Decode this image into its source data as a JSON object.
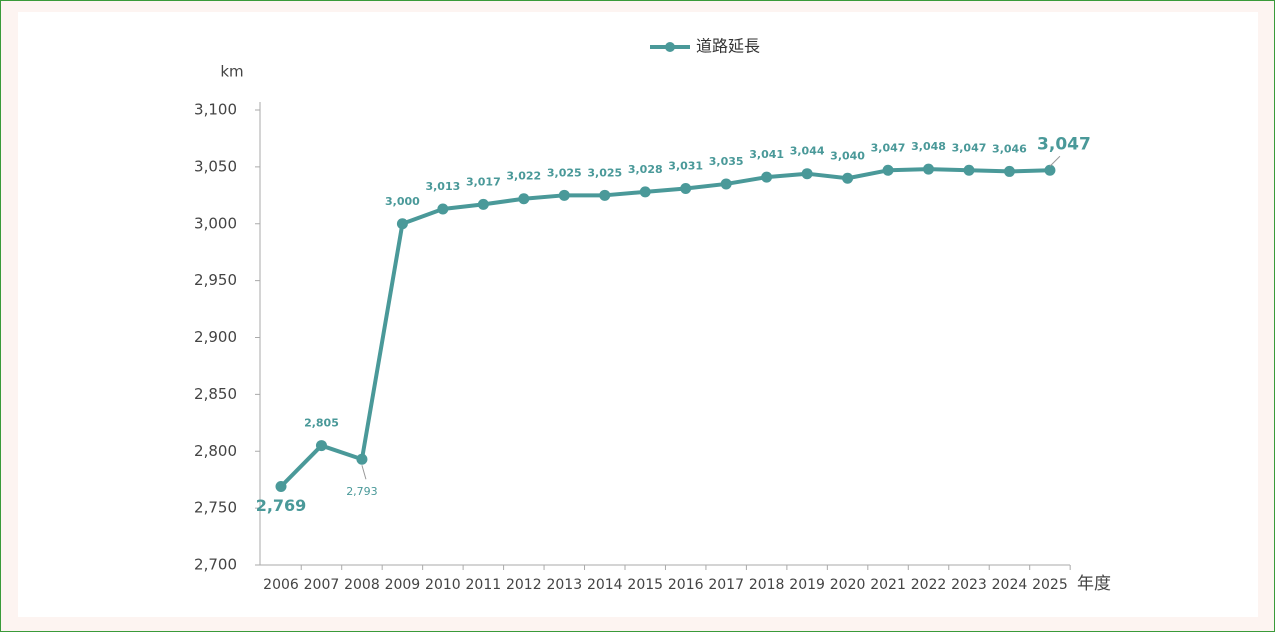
{
  "chart_data": {
    "type": "line",
    "y_axis_label": "km",
    "x_axis_label": "年度",
    "categories": [
      "2006",
      "2007",
      "2008",
      "2009",
      "2010",
      "2011",
      "2012",
      "2013",
      "2014",
      "2015",
      "2016",
      "2017",
      "2018",
      "2019",
      "2020",
      "2021",
      "2022",
      "2023",
      "2024",
      "2025"
    ],
    "series": [
      {
        "name": "道路延長",
        "color": "#4a9999",
        "values": [
          2769,
          2805,
          2793,
          3000,
          3013,
          3017,
          3022,
          3025,
          3025,
          3028,
          3031,
          3035,
          3041,
          3044,
          3040,
          3047,
          3048,
          3047,
          3046,
          3047
        ],
        "value_labels": [
          "2,769",
          "2,805",
          "2,793",
          "3,000",
          "3,013",
          "3,017",
          "3,022",
          "3,025",
          "3,025",
          "3,028",
          "3,031",
          "3,035",
          "3,041",
          "3,044",
          "3,040",
          "3,047",
          "3,048",
          "3,047",
          "3,046",
          "3,047"
        ]
      }
    ],
    "ylim": [
      2700,
      3100
    ],
    "yticks": [
      {
        "value": 2700,
        "label": "2,700"
      },
      {
        "value": 2750,
        "label": "2,750"
      },
      {
        "value": 2800,
        "label": "2,800"
      },
      {
        "value": 2850,
        "label": "2,850"
      },
      {
        "value": 2900,
        "label": "2,900"
      },
      {
        "value": 2950,
        "label": "2,950"
      },
      {
        "value": 3000,
        "label": "3,000"
      },
      {
        "value": 3050,
        "label": "3,050"
      },
      {
        "value": 3100,
        "label": "3,100"
      }
    ],
    "legend": "top"
  }
}
